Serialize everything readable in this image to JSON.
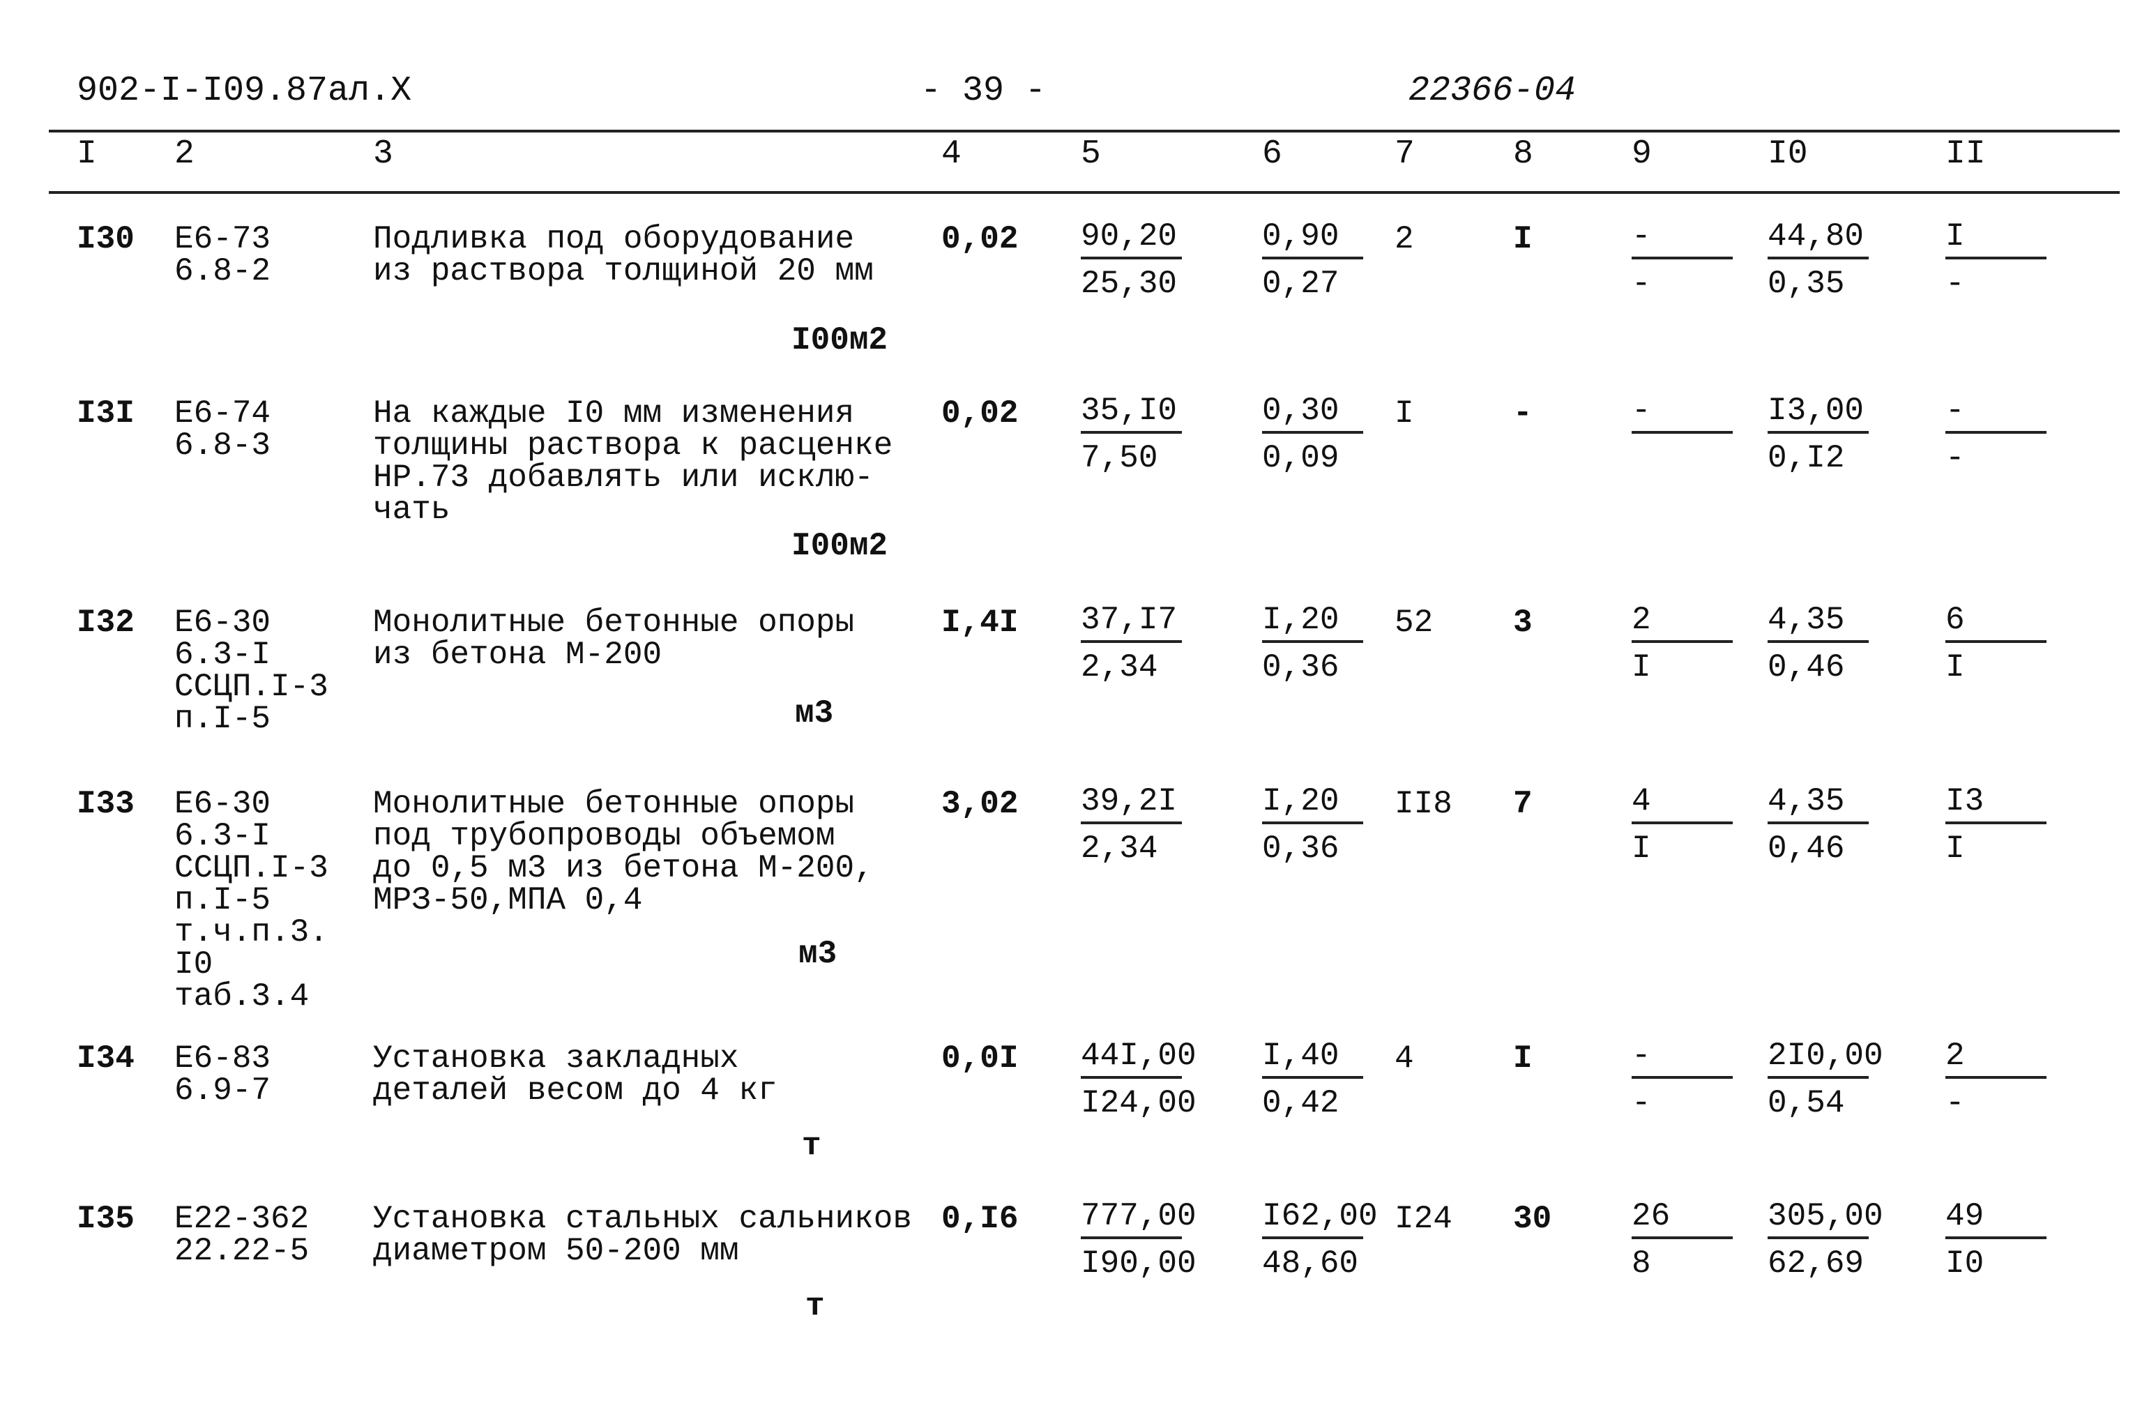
{
  "header": {
    "doc_code": "902-I-I09.87ал.X",
    "page": "- 39 -",
    "stamp": "22366-04"
  },
  "columns": [
    "I",
    "2",
    "3",
    "4",
    "5",
    "6",
    "7",
    "8",
    "9",
    "I0",
    "II"
  ],
  "rows": [
    {
      "num": "I30",
      "code": "Е6-73\n6.8-2",
      "desc": "Подливка под оборудование\nиз раствора толщиной 20 мм",
      "unit": "I00м2",
      "c4": "0,02",
      "c5": [
        "90,20",
        "25,30"
      ],
      "c6": [
        "0,90",
        "0,27"
      ],
      "c7": "2",
      "c8": "I",
      "c9": [
        "-",
        "-"
      ],
      "c10": [
        "44,80",
        "0,35"
      ],
      "c11": [
        "I",
        "-"
      ]
    },
    {
      "num": "I3I",
      "code": "Е6-74\n6.8-3",
      "desc": "На каждые I0 мм изменения\nтолщины раствора к расценке\nНР.73 добавлять или исклю-\nчать",
      "unit": "I00м2",
      "c4": "0,02",
      "c5": [
        "35,I0",
        "7,50"
      ],
      "c6": [
        "0,30",
        "0,09"
      ],
      "c7": "I",
      "c8": "-",
      "c9": [
        "-",
        ""
      ],
      "c10": [
        "I3,00",
        "0,I2"
      ],
      "c11": [
        "-",
        "-"
      ]
    },
    {
      "num": "I32",
      "code": "Е6-30\n6.3-I\nССЦП.I-3\nп.I-5",
      "desc": "Монолитные бетонные опоры\nиз бетона М-200",
      "unit": "м3",
      "c4": "I,4I",
      "c5": [
        "37,I7",
        "2,34"
      ],
      "c6": [
        "I,20",
        "0,36"
      ],
      "c7": "52",
      "c8": "3",
      "c9": [
        "2",
        "I"
      ],
      "c10": [
        "4,35",
        "0,46"
      ],
      "c11": [
        "6",
        "I"
      ]
    },
    {
      "num": "I33",
      "code": "Е6-30\n6.3-I\nССЦП.I-3\nп.I-5\nт.ч.п.3.\nI0\nтаб.3.4",
      "desc": "Монолитные бетонные опоры\nпод трубопроводы объемом\nдо 0,5 м3 из бетона М-200,\nМРЗ-50,МПА 0,4",
      "unit": "м3",
      "c4": "3,02",
      "c5": [
        "39,2I",
        "2,34"
      ],
      "c6": [
        "I,20",
        "0,36"
      ],
      "c7": "II8",
      "c8": "7",
      "c9": [
        "4",
        "I"
      ],
      "c10": [
        "4,35",
        "0,46"
      ],
      "c11": [
        "I3",
        "I"
      ]
    },
    {
      "num": "I34",
      "code": "Е6-83\n6.9-7",
      "desc": "Установка закладных\nдеталей весом до 4 кг",
      "unit": "т",
      "c4": "0,0I",
      "c5": [
        "44I,00",
        "I24,00"
      ],
      "c6": [
        "I,40",
        "0,42"
      ],
      "c7": "4",
      "c8": "I",
      "c9": [
        "-",
        "-"
      ],
      "c10": [
        "2I0,00",
        "0,54"
      ],
      "c11": [
        "2",
        "-"
      ]
    },
    {
      "num": "I35",
      "code": "Е22-362\n22.22-5",
      "desc": "Установка стальных сальников\nдиаметром 50-200 мм",
      "unit": "т",
      "c4": "0,I6",
      "c5": [
        "777,00",
        "I90,00"
      ],
      "c6": [
        "I62,00",
        "48,60"
      ],
      "c7": "I24",
      "c8": "30",
      "c9": [
        "26",
        "8"
      ],
      "c10": [
        "305,00",
        "62,69"
      ],
      "c11": [
        "49",
        "I0"
      ]
    }
  ]
}
